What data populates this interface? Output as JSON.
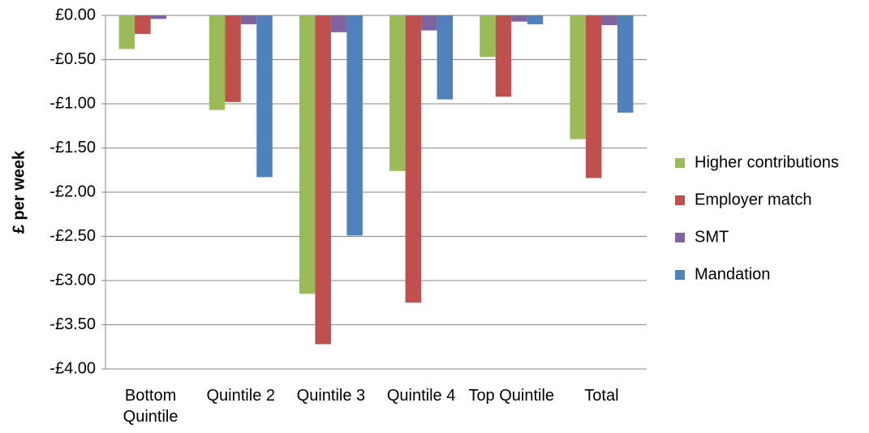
{
  "chart_data": {
    "type": "bar",
    "y_label": "£ per week",
    "categories": [
      "Bottom Quintile",
      "Quintile 2",
      "Quintile 3",
      "Quintile 4",
      "Top Quintile",
      "Total"
    ],
    "series": [
      {
        "name": "Higher contributions",
        "color": "#9bbb59",
        "values": [
          -0.38,
          -1.07,
          -3.15,
          -1.76,
          -0.47,
          -1.4
        ]
      },
      {
        "name": "Employer match",
        "color": "#c0504d",
        "values": [
          -0.21,
          -0.98,
          -3.72,
          -3.25,
          -0.92,
          -1.84
        ]
      },
      {
        "name": "SMT",
        "color": "#8064a2",
        "values": [
          -0.04,
          -0.1,
          -0.19,
          -0.17,
          -0.07,
          -0.11
        ]
      },
      {
        "name": "Mandation",
        "color": "#4f81bd",
        "values": [
          null,
          -1.83,
          -2.49,
          -0.95,
          -0.1,
          -1.1
        ]
      }
    ],
    "ylim": [
      -4,
      0
    ],
    "yticks": [
      {
        "value": 0,
        "label": "£0.00"
      },
      {
        "value": -0.5,
        "label": "-£0.50"
      },
      {
        "value": -1,
        "label": "-£1.00"
      },
      {
        "value": -1.5,
        "label": "-£1.50"
      },
      {
        "value": -2,
        "label": "-£2.00"
      },
      {
        "value": -2.5,
        "label": "-£2.50"
      },
      {
        "value": -3,
        "label": "-£3.00"
      },
      {
        "value": -3.5,
        "label": "-£3.50"
      },
      {
        "value": -4,
        "label": "-£4.00"
      }
    ],
    "grid": true
  }
}
